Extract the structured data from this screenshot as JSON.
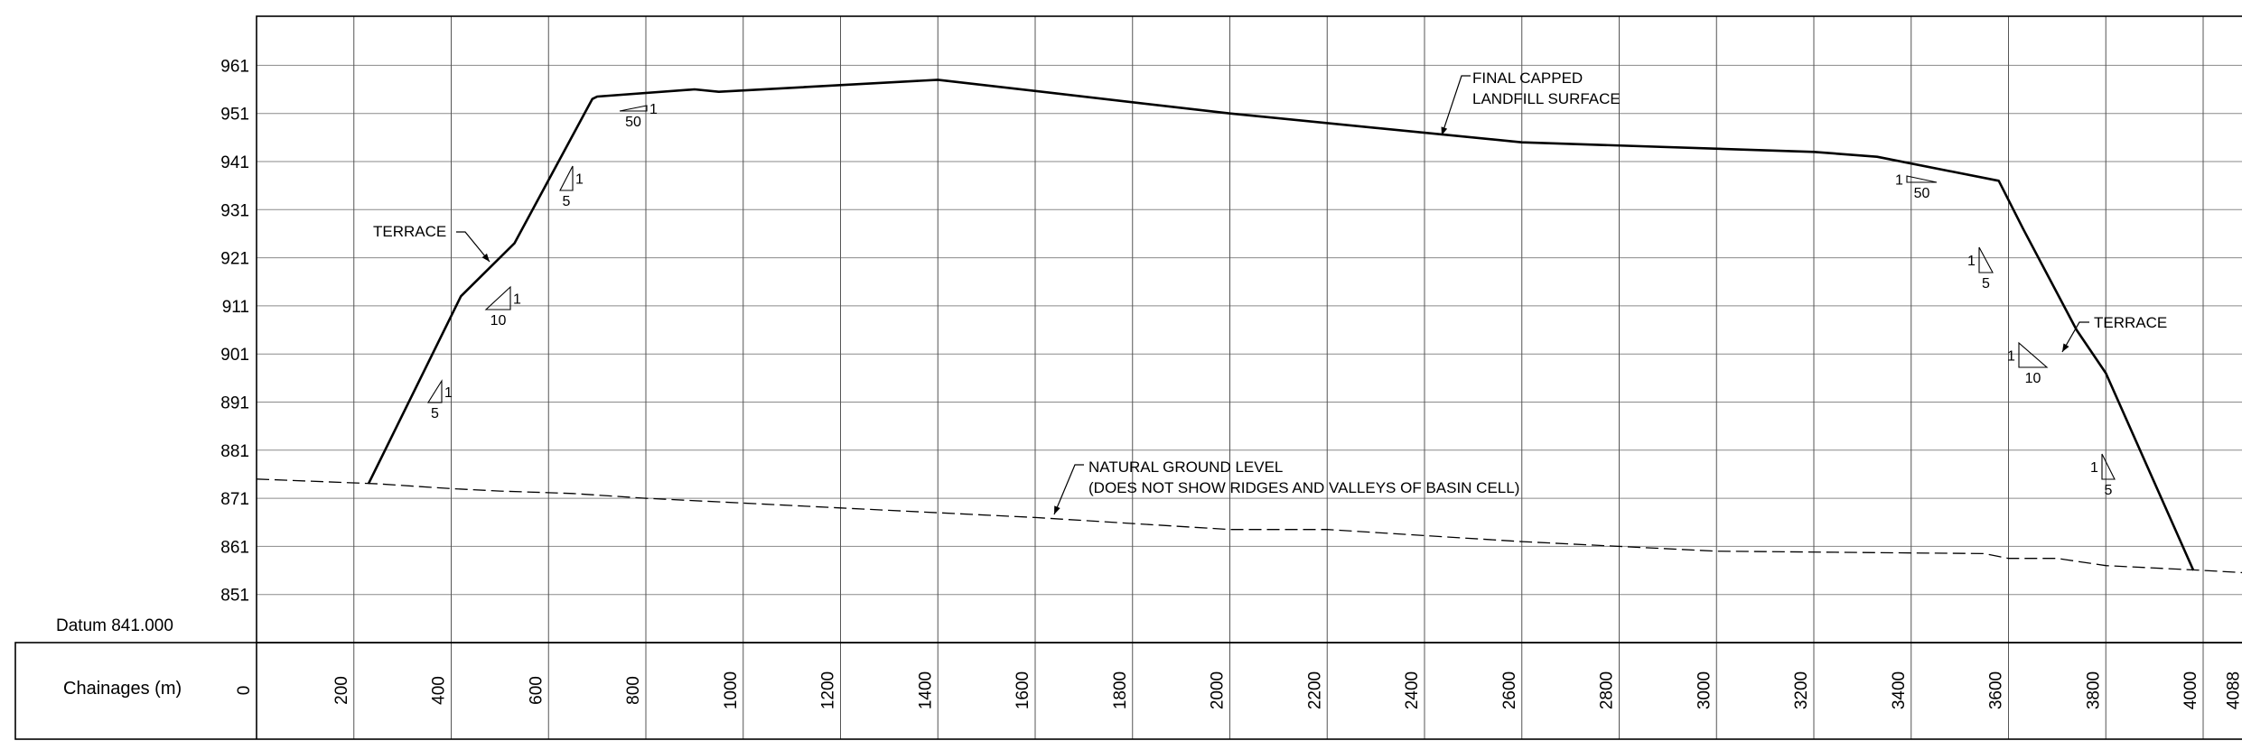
{
  "datum": "Datum 841.000",
  "chainage_header": "Chainages (m)",
  "labels": {
    "surface_line1": "FINAL CAPPED",
    "surface_line2": "LANDFILL SURFACE",
    "terrace_left": "TERRACE",
    "terrace_right": "TERRACE",
    "ngl_line1": "NATURAL GROUND LEVEL",
    "ngl_line2": "(DOES NOT SHOW RIDGES AND VALLEYS OF BASIN CELL)"
  },
  "slopes": [
    {
      "rise": "1",
      "run": "5",
      "dir": "up"
    },
    {
      "rise": "1",
      "run": "10",
      "dir": "up"
    },
    {
      "rise": "1",
      "run": "5",
      "dir": "up"
    },
    {
      "rise": "1",
      "run": "50",
      "dir": "up"
    },
    {
      "rise": "1",
      "run": "50",
      "dir": "down"
    },
    {
      "rise": "1",
      "run": "5",
      "dir": "down"
    },
    {
      "rise": "1",
      "run": "10",
      "dir": "down"
    },
    {
      "rise": "1",
      "run": "5",
      "dir": "down"
    }
  ],
  "chart_data": {
    "type": "line",
    "xlabel": "Chainages (m)",
    "ylabel": "",
    "xlim": [
      0,
      4088
    ],
    "ylim": [
      841,
      971
    ],
    "x_ticks": [
      0,
      200,
      400,
      600,
      800,
      1000,
      1200,
      1400,
      1600,
      1800,
      2000,
      2200,
      2400,
      2600,
      2800,
      3000,
      3200,
      3400,
      3600,
      3800,
      4000,
      4088
    ],
    "y_ticks": [
      851,
      861,
      871,
      881,
      891,
      901,
      911,
      921,
      931,
      941,
      951,
      961
    ],
    "grid": true,
    "series": [
      {
        "name": "FINAL CAPPED LANDFILL SURFACE",
        "style": "solid",
        "x": [
          230,
          420,
          530,
          690,
          700,
          900,
          950,
          1400,
          2000,
          2600,
          3200,
          3330,
          3580,
          3630,
          3740,
          3800,
          3980
        ],
        "y": [
          874,
          913,
          924,
          954,
          954.5,
          956,
          955.5,
          958,
          951,
          945,
          943,
          942,
          937,
          927,
          906,
          897,
          856
        ]
      },
      {
        "name": "NATURAL GROUND LEVEL",
        "style": "dashed",
        "x": [
          0,
          250,
          400,
          500,
          650,
          800,
          1000,
          1200,
          1600,
          2000,
          2200,
          2600,
          3000,
          3550,
          3600,
          3700,
          3800,
          4000,
          4088
        ],
        "y": [
          875,
          874,
          873,
          872.5,
          872,
          871,
          870,
          869,
          867,
          864.5,
          864.5,
          862,
          860,
          859.5,
          858.5,
          858.5,
          857,
          856,
          855.5
        ]
      }
    ]
  }
}
